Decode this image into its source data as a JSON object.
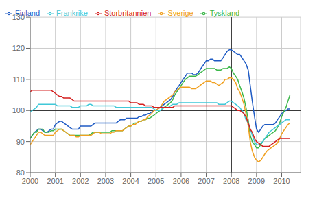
{
  "chart_data": {
    "type": "line",
    "x": [
      2000.0,
      2000.08,
      2000.17,
      2000.25,
      2000.33,
      2000.42,
      2000.5,
      2000.58,
      2000.67,
      2000.75,
      2000.83,
      2000.92,
      2001.0,
      2001.08,
      2001.17,
      2001.25,
      2001.33,
      2001.42,
      2001.5,
      2001.58,
      2001.67,
      2001.75,
      2001.83,
      2001.92,
      2002.0,
      2002.08,
      2002.17,
      2002.25,
      2002.33,
      2002.42,
      2002.5,
      2002.58,
      2002.67,
      2002.75,
      2002.83,
      2002.92,
      2003.0,
      2003.08,
      2003.17,
      2003.25,
      2003.33,
      2003.42,
      2003.5,
      2003.58,
      2003.67,
      2003.75,
      2003.83,
      2003.92,
      2004.0,
      2004.08,
      2004.17,
      2004.25,
      2004.33,
      2004.42,
      2004.5,
      2004.58,
      2004.67,
      2004.75,
      2004.83,
      2004.92,
      2005.0,
      2005.08,
      2005.17,
      2005.25,
      2005.33,
      2005.42,
      2005.5,
      2005.58,
      2005.67,
      2005.75,
      2005.83,
      2005.92,
      2006.0,
      2006.08,
      2006.17,
      2006.25,
      2006.33,
      2006.42,
      2006.5,
      2006.58,
      2006.67,
      2006.75,
      2006.83,
      2006.92,
      2007.0,
      2007.08,
      2007.17,
      2007.25,
      2007.33,
      2007.42,
      2007.5,
      2007.58,
      2007.67,
      2007.75,
      2007.83,
      2007.92,
      2008.0,
      2008.08,
      2008.17,
      2008.25,
      2008.33,
      2008.42,
      2008.5,
      2008.58,
      2008.67,
      2008.75,
      2008.83,
      2008.92,
      2009.0,
      2009.08,
      2009.17,
      2009.25,
      2009.33,
      2009.42,
      2009.5,
      2009.58,
      2009.67,
      2009.75,
      2009.83,
      2009.92,
      2010.0,
      2010.08,
      2010.17,
      2010.25,
      2010.33
    ],
    "series": [
      {
        "name": "Finland",
        "color": "#1f5bc4",
        "values": [
          91,
          92,
          93,
          93.5,
          94,
          94,
          93.5,
          93,
          93,
          93.5,
          94,
          94,
          95.5,
          96,
          96.5,
          96.5,
          96,
          95.5,
          95,
          94.5,
          94,
          94,
          94,
          94,
          95,
          95,
          95,
          95,
          95,
          95,
          95.5,
          96,
          96,
          96,
          96,
          96,
          96,
          96,
          96,
          96,
          96,
          96,
          96.5,
          97,
          97,
          97,
          97.5,
          97.5,
          97.5,
          97.5,
          97.5,
          97.5,
          98,
          98,
          98.5,
          98.5,
          99,
          99,
          99.5,
          100,
          100,
          100.5,
          101,
          101.5,
          102,
          102.5,
          103,
          103.5,
          104.5,
          106,
          107,
          108,
          109,
          110,
          111,
          112,
          112,
          112,
          111.5,
          111.5,
          112,
          113,
          114,
          115,
          116,
          116,
          116.5,
          116.5,
          116,
          116,
          116,
          116,
          117,
          118,
          119,
          119.5,
          119.5,
          119,
          118.5,
          118,
          118,
          117,
          116,
          115,
          113,
          108,
          103,
          98,
          94,
          93,
          94,
          95,
          95.5,
          95.5,
          95.5,
          95.5,
          95.5,
          96,
          97,
          98,
          99,
          99.5,
          100,
          100.5,
          100.5
        ]
      },
      {
        "name": "Tyskland",
        "color": "#3cb84a",
        "values": [
          91,
          92,
          93,
          93,
          94,
          94,
          94,
          93,
          93,
          93,
          93.5,
          93.5,
          94,
          94,
          94,
          94,
          93.5,
          93,
          92.5,
          92,
          92,
          92,
          92,
          92,
          92,
          92,
          92,
          92,
          92,
          92.5,
          93,
          93,
          93,
          93,
          93,
          93,
          93,
          93,
          93,
          93.5,
          93.5,
          93.5,
          93.5,
          93.5,
          93.5,
          94,
          94.5,
          95,
          95,
          95.5,
          96,
          96,
          96.5,
          96.5,
          97,
          97,
          97.5,
          97.5,
          98,
          98.5,
          99,
          99.5,
          100,
          100.5,
          101,
          101.5,
          102,
          102.5,
          103.5,
          105,
          106,
          107,
          108,
          109,
          110,
          110.5,
          111,
          111,
          111,
          111,
          111.5,
          112,
          112.5,
          113,
          113.5,
          113.5,
          113.5,
          113.5,
          113.5,
          113,
          113,
          113,
          113.5,
          113.5,
          113.5,
          114,
          113.5,
          112,
          111,
          110,
          108,
          106,
          104,
          101,
          97,
          92,
          90,
          89,
          88,
          88,
          89,
          90,
          91,
          91.5,
          92,
          92.5,
          93,
          93.5,
          94.5,
          96,
          98,
          99.5,
          101,
          103,
          105
        ]
      },
      {
        "name": "Sverige",
        "color": "#f0a020",
        "values": [
          89,
          90,
          91,
          92,
          93,
          93,
          92.5,
          92,
          92,
          92,
          92,
          92,
          93,
          93.5,
          94,
          94,
          93.5,
          93,
          92.5,
          92,
          92,
          92,
          91.5,
          91.5,
          92,
          92,
          92,
          92,
          92,
          92,
          92.5,
          93,
          93,
          93,
          92.5,
          92.5,
          92.5,
          92.5,
          92.5,
          93,
          93,
          93.5,
          93.5,
          93.5,
          93.5,
          94,
          94.5,
          95,
          95,
          95.5,
          95.5,
          96,
          96.5,
          96.5,
          97,
          97,
          98,
          98.5,
          99,
          100,
          100,
          100.5,
          101,
          102,
          103,
          103.5,
          104,
          104.5,
          105,
          106,
          106.5,
          107,
          107.5,
          107.5,
          107.5,
          107.5,
          107.5,
          107,
          107,
          107,
          107.5,
          108,
          108.5,
          109,
          109.5,
          109.5,
          109.5,
          109,
          109,
          108.5,
          108,
          108.5,
          109,
          110,
          110,
          110.5,
          110.5,
          110,
          109,
          107,
          106,
          104,
          102,
          99,
          95,
          90,
          87,
          85,
          84,
          83.5,
          84,
          85,
          86,
          87,
          87.5,
          88,
          88.5,
          89,
          89.5,
          91,
          92.5,
          93.5,
          94.5,
          95.5,
          96
        ]
      },
      {
        "name": "Frankrike",
        "color": "#40c8d8",
        "values": [
          99.5,
          100,
          100.5,
          101,
          102,
          102,
          102,
          102,
          102,
          102,
          102,
          102,
          102,
          101.5,
          101.5,
          101.5,
          101.5,
          101.5,
          101.5,
          101.5,
          101,
          101,
          101,
          101,
          101.5,
          101.5,
          101.5,
          101.5,
          102,
          102,
          101.5,
          101.5,
          101.5,
          101.5,
          101.5,
          101.5,
          101.5,
          101.5,
          101.5,
          101.5,
          101.5,
          101,
          101,
          101,
          101,
          101,
          101,
          101,
          101,
          101,
          101,
          101,
          101,
          101,
          101,
          101,
          101,
          101,
          101,
          100.5,
          100,
          100,
          100,
          100.5,
          101,
          101,
          101,
          101.5,
          102,
          102,
          102,
          102.5,
          102.5,
          102.5,
          102.5,
          102.5,
          102.5,
          102.5,
          102.5,
          102.5,
          102.5,
          102.5,
          102.5,
          102.5,
          102.5,
          102.5,
          102.5,
          102.5,
          102.5,
          102.5,
          102,
          102,
          102,
          102,
          102.5,
          103,
          103,
          102.5,
          102,
          101.5,
          101,
          100,
          99,
          97,
          96,
          94,
          92,
          90,
          89,
          89,
          89.5,
          90,
          91,
          92,
          93,
          93.5,
          94,
          94.5,
          95,
          95.5,
          96,
          96.5,
          97,
          97,
          97
        ]
      },
      {
        "name": "Storbritannien",
        "color": "#d42020",
        "values": [
          106,
          106.5,
          106.5,
          106.5,
          106.5,
          106.5,
          106.5,
          106.5,
          106.5,
          106.5,
          106.5,
          106,
          105.5,
          105,
          104.5,
          104.5,
          104,
          104,
          104,
          104,
          103.5,
          103,
          103,
          103,
          103,
          103,
          103,
          103,
          103,
          103,
          103,
          103,
          103,
          103,
          103,
          103,
          103,
          103,
          103,
          103,
          103,
          103,
          103,
          103,
          103,
          103,
          103,
          103,
          102.5,
          102.5,
          102.5,
          102.5,
          102,
          102,
          102,
          101.5,
          101.5,
          101.5,
          101.5,
          101,
          101,
          101,
          101,
          101,
          101,
          101,
          101,
          101,
          101,
          101.5,
          101.5,
          101.5,
          101.5,
          101.5,
          101.5,
          101.5,
          101.5,
          101.5,
          101.5,
          101.5,
          101.5,
          101.5,
          101.5,
          101.5,
          101.5,
          101.5,
          101.5,
          101.5,
          101.5,
          101.5,
          101.5,
          101.5,
          101.5,
          101.5,
          101.5,
          101.5,
          101.5,
          101,
          100.5,
          100,
          100,
          99.5,
          99,
          98,
          96,
          94,
          93,
          91,
          90,
          89.5,
          89,
          88.5,
          88.5,
          88.5,
          88.5,
          89,
          89.5,
          90,
          90.5,
          91,
          91,
          91,
          91,
          91,
          91
        ]
      }
    ],
    "xlim": [
      2000,
      2010.75
    ],
    "xticks": [
      2000,
      2001,
      2002,
      2003,
      2004,
      2005,
      2006,
      2007,
      2008,
      2009,
      2010
    ],
    "ylim": [
      80,
      130
    ],
    "yticks": [
      80,
      90,
      100,
      110,
      120,
      130
    ],
    "hlines": [
      100
    ],
    "vlines": [
      2008
    ],
    "grid": true,
    "legend": "upper left"
  }
}
